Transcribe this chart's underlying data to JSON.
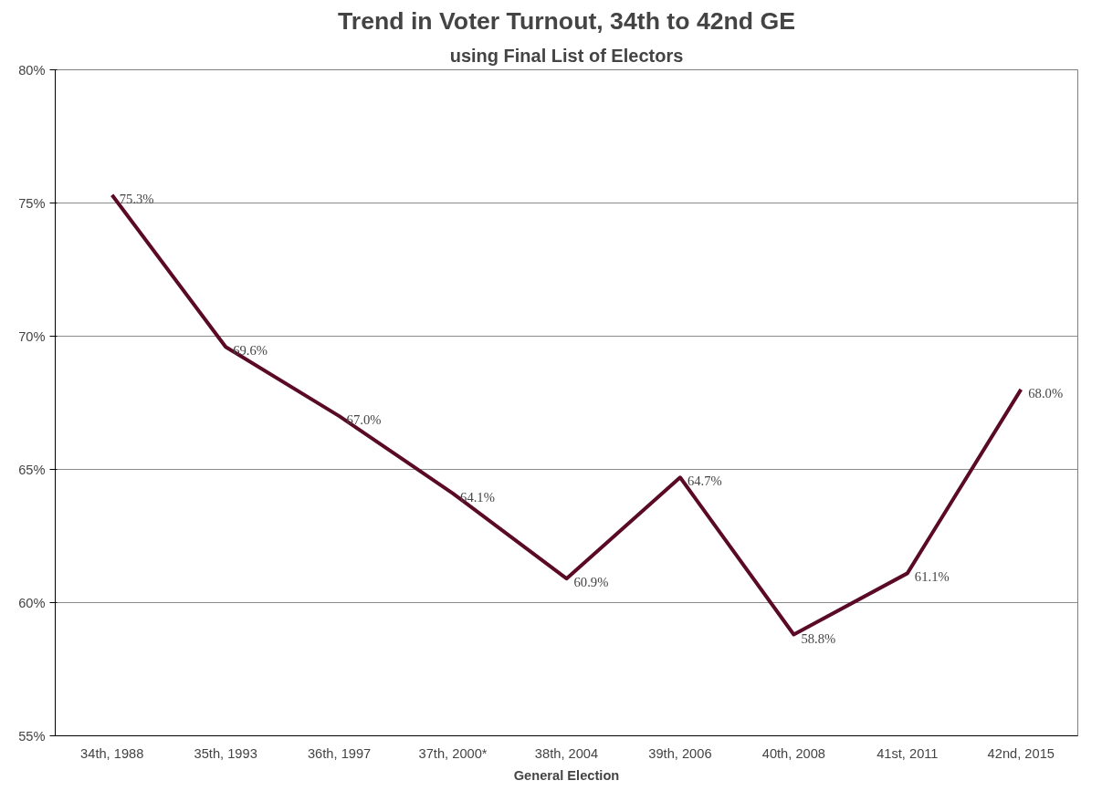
{
  "chart_data": {
    "type": "line",
    "title": "Trend in Voter Turnout, 34th to 42nd GE",
    "subtitle": "using Final List of Electors",
    "xlabel": "General Election",
    "categories": [
      "34th, 1988",
      "35th, 1993",
      "36th, 1997",
      "37th, 2000*",
      "38th, 2004",
      "39th, 2006",
      "40th, 2008",
      "41st, 2011",
      "42nd, 2015"
    ],
    "series": [
      {
        "color": "#5a0a26",
        "values": [
          75.3,
          69.6,
          67.0,
          64.1,
          60.9,
          64.7,
          58.8,
          61.1,
          68.0
        ],
        "value_labels": [
          "75.3%",
          "69.6%",
          "67.0%",
          "64.1%",
          "60.9%",
          "64.7%",
          "58.8%",
          "61.1%",
          "68.0%"
        ]
      }
    ],
    "ylim": [
      55,
      80
    ],
    "yticks": [
      {
        "value": 55,
        "label": "55%"
      },
      {
        "value": 60,
        "label": "60%"
      },
      {
        "value": 65,
        "label": "65%"
      },
      {
        "value": 70,
        "label": "70%"
      },
      {
        "value": 75,
        "label": "75%"
      },
      {
        "value": 80,
        "label": "80%"
      }
    ],
    "grid": "y",
    "marker": "none",
    "line_style": "solid"
  }
}
